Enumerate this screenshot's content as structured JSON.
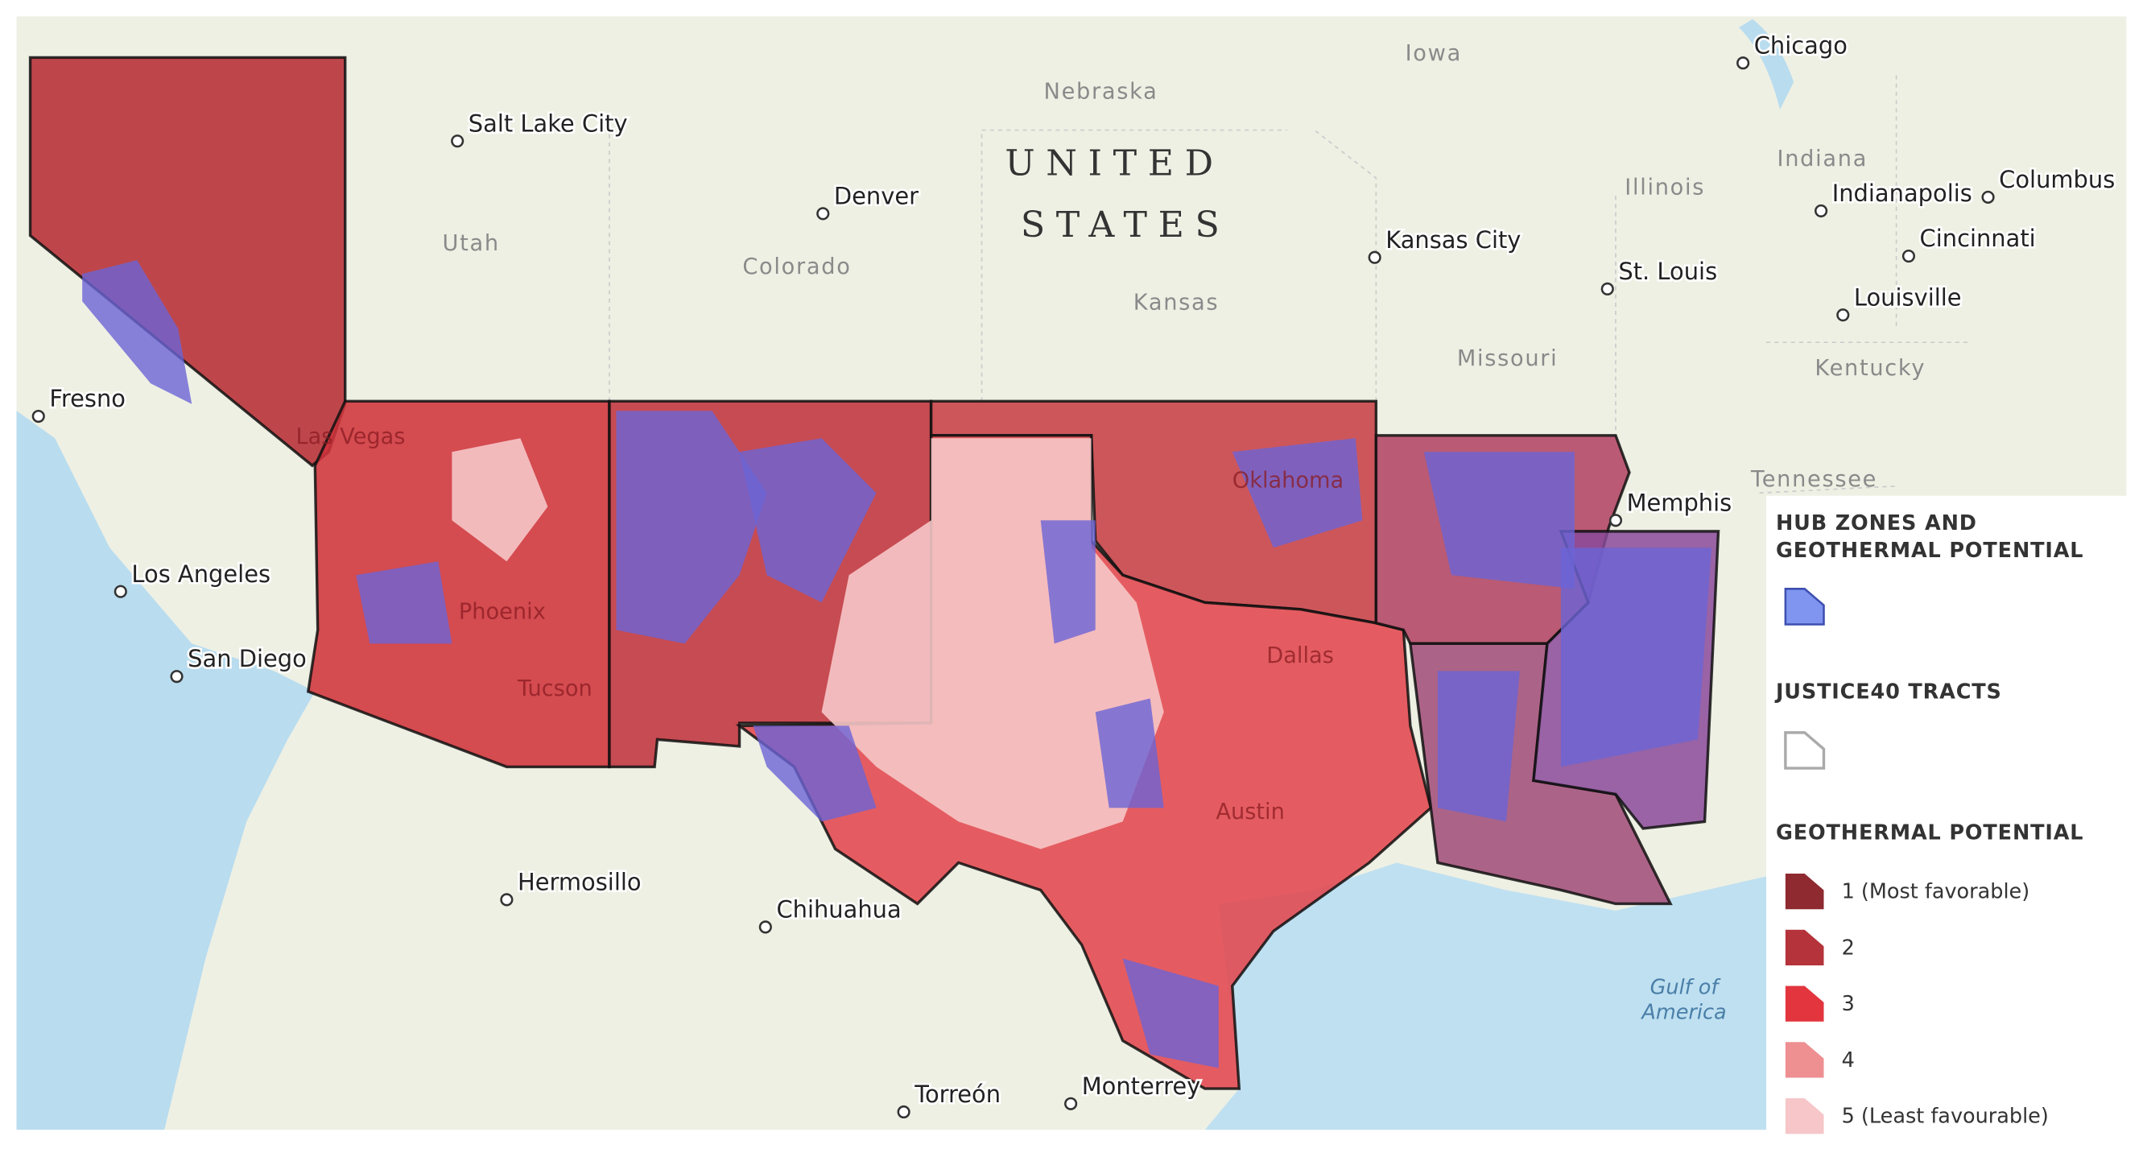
{
  "map": {
    "country": [
      "UNITED",
      "STATES"
    ],
    "states": [
      "Nebraska",
      "Iowa",
      "Utah",
      "Colorado",
      "Kansas",
      "Missouri",
      "Illinois",
      "Indiana",
      "Kentucky",
      "Tennessee"
    ],
    "cities": [
      "Salt Lake City",
      "Denver",
      "Chicago",
      "Kansas City",
      "St. Louis",
      "Indianapolis",
      "Columbus",
      "Cincinnati",
      "Louisville",
      "Memphis",
      "Fresno",
      "Los Angeles",
      "San Diego",
      "Hermosillo",
      "Chihuahua",
      "Torreón",
      "Monterrey"
    ],
    "overlay_labels": [
      "Las Vegas",
      "Phoenix",
      "Tucson",
      "Oklahoma",
      "Dallas",
      "Austin"
    ],
    "water": [
      "Gulf of",
      "America"
    ]
  },
  "legend": {
    "hub_title": [
      "HUB ZONES AND",
      "GEOTHERMAL POTENTIAL"
    ],
    "hub_color": "#7f95f0",
    "justice_title": "JUSTICE40 TRACTS",
    "geo_title": "GEOTHERMAL POTENTIAL",
    "geo_items": [
      {
        "label": "1 (Most favorable)",
        "color": "#8e2a30"
      },
      {
        "label": "2",
        "color": "#b5333b"
      },
      {
        "label": "3",
        "color": "#e2353d"
      },
      {
        "label": "4",
        "color": "#ee8f92"
      },
      {
        "label": "5 (Least favourable)",
        "color": "#f6c6c8"
      }
    ]
  }
}
